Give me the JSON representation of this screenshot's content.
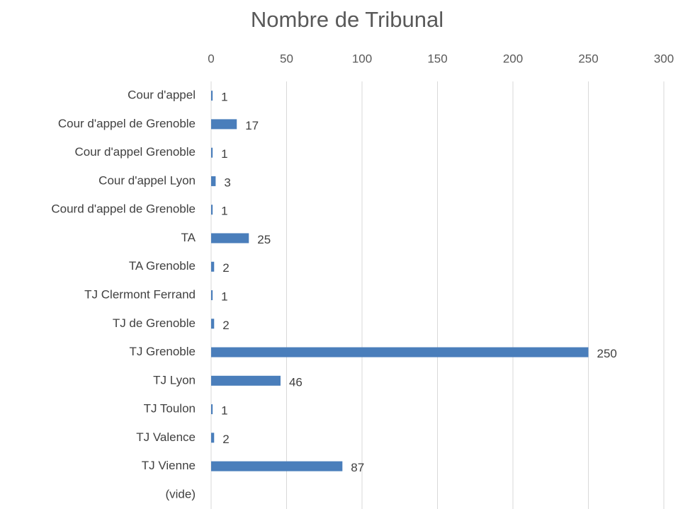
{
  "chart_data": {
    "type": "bar",
    "orientation": "horizontal",
    "title": "Nombre de Tribunal",
    "categories": [
      "Cour d'appel",
      "Cour d'appel de Grenoble",
      "Cour d'appel Grenoble",
      "Cour d'appel Lyon",
      "Courd d'appel de Grenoble",
      "TA",
      "TA Grenoble",
      "TJ Clermont Ferrand",
      "TJ de Grenoble",
      "TJ Grenoble",
      "TJ Lyon",
      "TJ Toulon",
      "TJ Valence",
      "TJ Vienne",
      "(vide)"
    ],
    "values": [
      1,
      17,
      1,
      3,
      1,
      25,
      2,
      1,
      2,
      250,
      46,
      1,
      2,
      87,
      null
    ],
    "color": "#4a7ebb",
    "xlim": [
      0,
      300
    ],
    "xticks": [
      0,
      50,
      100,
      150,
      200,
      250,
      300
    ],
    "grid": true,
    "axis_position": "top"
  }
}
